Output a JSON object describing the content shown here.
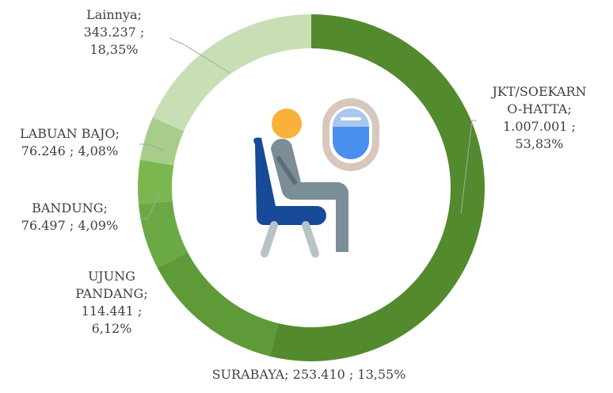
{
  "chart_data": {
    "type": "donut",
    "categories": [
      "JKT/SOEKARNO-HATTA;",
      "SURABAYA;",
      "UJUNG PANDANG;",
      "BANDUNG;",
      "LABUAN BAJO;",
      "Lainnya;"
    ],
    "values": [
      1007001,
      253410,
      114441,
      76497,
      76246,
      343237
    ],
    "value_labels": [
      "1.007.001 ;",
      "253.410 ;",
      "114.441 ;",
      "76.497 ;",
      "76.246 ;",
      "343.237 ;"
    ],
    "percents": [
      53.83,
      13.55,
      6.12,
      4.09,
      4.08,
      18.35
    ],
    "percent_labels": [
      "53,83%",
      "13,55%",
      "6,12%",
      "4,09%",
      "4,08%",
      "18,35%"
    ],
    "colors": [
      "#548a2e",
      "#5f9a38",
      "#6aa944",
      "#7bb74e",
      "#a8cd8b",
      "#c8dfb6"
    ]
  }
}
